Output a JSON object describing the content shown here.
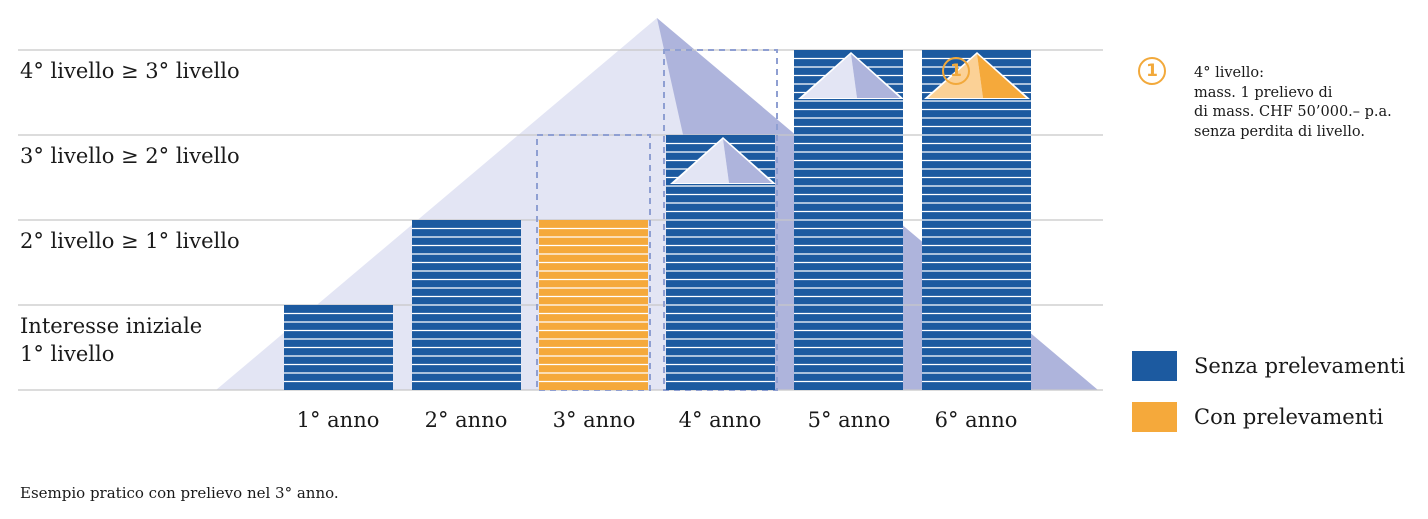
{
  "chart_data": {
    "type": "bar",
    "categories": [
      "1° anno",
      "2° anno",
      "3° anno",
      "4° anno",
      "5° anno",
      "6° anno"
    ],
    "levels": [
      "Interesse iniziale\n1° livello",
      "2° livello ≥ 1° livello",
      "3° livello ≥ 2° livello",
      "4° livello ≥ 3° livello"
    ],
    "values": [
      1,
      2,
      2,
      3,
      4,
      4
    ],
    "bar_kind": [
      "senza",
      "senza",
      "con",
      "senza",
      "senza",
      "senza"
    ],
    "previous_level_outline": [
      null,
      null,
      3,
      4,
      null,
      null
    ],
    "roof_markers": [
      null,
      null,
      null,
      "senza",
      "senza",
      "con"
    ],
    "ylim": [
      0,
      4
    ],
    "legend": [
      {
        "key": "senza",
        "label": "Senza prelevamenti",
        "color": "#1c5aa0"
      },
      {
        "key": "con",
        "label": "Con prelevamenti",
        "color": "#f5a93b"
      }
    ],
    "note_marker": "1",
    "note_lines": [
      "4° livello:",
      "mass. 1 prelievo di",
      "di mass. CHF 50’000.– p.a.",
      "senza perdita di livello."
    ],
    "footnote": "Esempio pratico con prelievo nel 3° anno."
  },
  "colors": {
    "bar_blue": "#1c5aa0",
    "bar_orange": "#f5a93b",
    "triangle_light": "#e3e5f4",
    "triangle_dark": "#aeb4dc",
    "gridline": "#c8c8c8",
    "dashed_outline": "#8f9fd2",
    "badge": "#f2a93b"
  }
}
